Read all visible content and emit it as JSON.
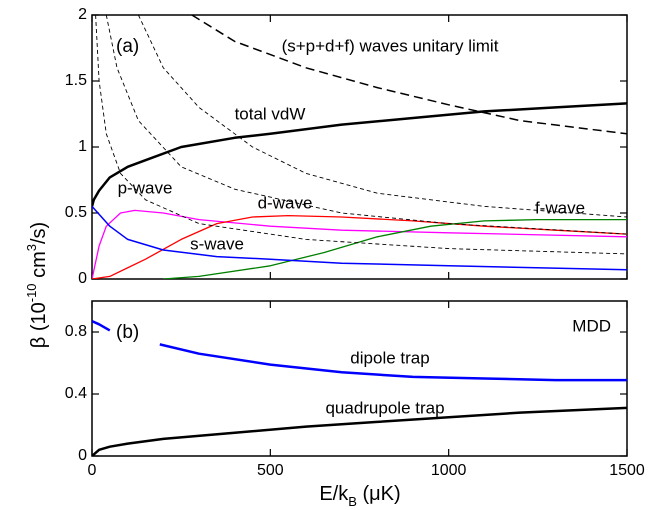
{
  "chart_data": [
    {
      "type": "line",
      "panel_label": "(a)",
      "y_label": [
        "β (10",
        "-10",
        " cm",
        "3",
        "/s)"
      ],
      "xlim": [
        0,
        1500
      ],
      "xticks": [
        0,
        500,
        1000,
        1500
      ],
      "ylim": [
        0,
        2
      ],
      "yticks": [
        0,
        0.5,
        1,
        1.5,
        2
      ],
      "series": [
        {
          "name": "total vdW",
          "color": "#000000",
          "style": "solid",
          "linewidth": 2.5,
          "x": [
            0,
            5,
            20,
            50,
            100,
            150,
            250,
            400,
            500,
            700,
            900,
            1100,
            1300,
            1500
          ],
          "values": [
            0.55,
            0.6,
            0.67,
            0.77,
            0.85,
            0.9,
            1.0,
            1.07,
            1.1,
            1.17,
            1.22,
            1.27,
            1.3,
            1.33
          ]
        },
        {
          "name": "p-wave",
          "color": "#ff00ff",
          "style": "solid",
          "linewidth": 1.3,
          "x": [
            0,
            20,
            40,
            80,
            120,
            200,
            300,
            500,
            700,
            1000,
            1500
          ],
          "values": [
            0,
            0.25,
            0.4,
            0.5,
            0.52,
            0.5,
            0.45,
            0.4,
            0.37,
            0.35,
            0.32
          ]
        },
        {
          "name": "d-wave",
          "color": "#ff0000",
          "style": "solid",
          "linewidth": 1.3,
          "x": [
            0,
            50,
            150,
            250,
            350,
            450,
            550,
            700,
            900,
            1100,
            1300,
            1500
          ],
          "values": [
            0,
            0.02,
            0.15,
            0.3,
            0.42,
            0.47,
            0.48,
            0.47,
            0.44,
            0.4,
            0.37,
            0.34
          ]
        },
        {
          "name": "f-wave",
          "color": "#008000",
          "style": "solid",
          "linewidth": 1.3,
          "x": [
            200,
            300,
            500,
            650,
            800,
            950,
            1100,
            1250,
            1500
          ],
          "values": [
            0,
            0.02,
            0.1,
            0.2,
            0.32,
            0.4,
            0.44,
            0.45,
            0.45
          ]
        },
        {
          "name": "s-wave",
          "color": "#0000ff",
          "style": "solid",
          "linewidth": 1.5,
          "x": [
            0,
            50,
            100,
            200,
            350,
            500,
            700,
            1000,
            1500
          ],
          "values": [
            0.55,
            0.4,
            0.3,
            0.22,
            0.17,
            0.15,
            0.12,
            0.1,
            0.07
          ]
        },
        {
          "name": "(s+p+d+f) waves unitary limit",
          "color": "#000000",
          "style": "dashed",
          "linewidth": 1.5,
          "x": [
            280,
            400,
            600,
            800,
            1000,
            1200,
            1500
          ],
          "values": [
            2,
            1.8,
            1.6,
            1.45,
            1.32,
            1.2,
            1.1
          ]
        },
        {
          "color": "#000000",
          "style": "dashed-thin",
          "linewidth": 0.9,
          "x": [
            10,
            20,
            40,
            80,
            150,
            300,
            600,
            1000,
            1500
          ],
          "values": [
            2,
            1.5,
            1.1,
            0.8,
            0.6,
            0.42,
            0.3,
            0.23,
            0.19
          ]
        },
        {
          "color": "#000000",
          "style": "dashed-thin",
          "linewidth": 0.9,
          "x": [
            40,
            70,
            130,
            250,
            400,
            700,
            1000,
            1500
          ],
          "values": [
            2,
            1.6,
            1.2,
            0.85,
            0.68,
            0.5,
            0.42,
            0.34
          ]
        },
        {
          "color": "#000000",
          "style": "dashed-thin",
          "linewidth": 0.9,
          "x": [
            130,
            200,
            300,
            450,
            600,
            800,
            1100,
            1500
          ],
          "values": [
            2,
            1.6,
            1.3,
            1.0,
            0.8,
            0.65,
            0.55,
            0.47
          ]
        }
      ]
    },
    {
      "type": "line",
      "panel_label": "(b)",
      "annotation": "MDD",
      "x_label": [
        "E/k",
        "B",
        " (μK)"
      ],
      "xlim": [
        0,
        1500
      ],
      "xticks": [
        0,
        500,
        1000,
        1500
      ],
      "ylim": [
        0,
        1
      ],
      "yticks": [
        0,
        0.4,
        0.8
      ],
      "series": [
        {
          "name": "dipole trap",
          "color": "#0000ff",
          "style": "solid",
          "linewidth": 2.5,
          "x": [
            0,
            20,
            50,
            120,
            190,
            300,
            500,
            700,
            900,
            1100,
            1300,
            1500
          ],
          "values": [
            0.87,
            0.85,
            0.81,
            null,
            0.72,
            0.66,
            0.59,
            0.54,
            0.51,
            0.5,
            0.49,
            0.49
          ]
        },
        {
          "name": "quadrupole trap",
          "color": "#000000",
          "style": "solid",
          "linewidth": 2.5,
          "x": [
            0,
            20,
            50,
            100,
            200,
            400,
            600,
            800,
            1000,
            1200,
            1500
          ],
          "values": [
            0,
            0.04,
            0.06,
            0.08,
            0.11,
            0.15,
            0.19,
            0.22,
            0.25,
            0.28,
            0.31
          ]
        }
      ]
    }
  ]
}
